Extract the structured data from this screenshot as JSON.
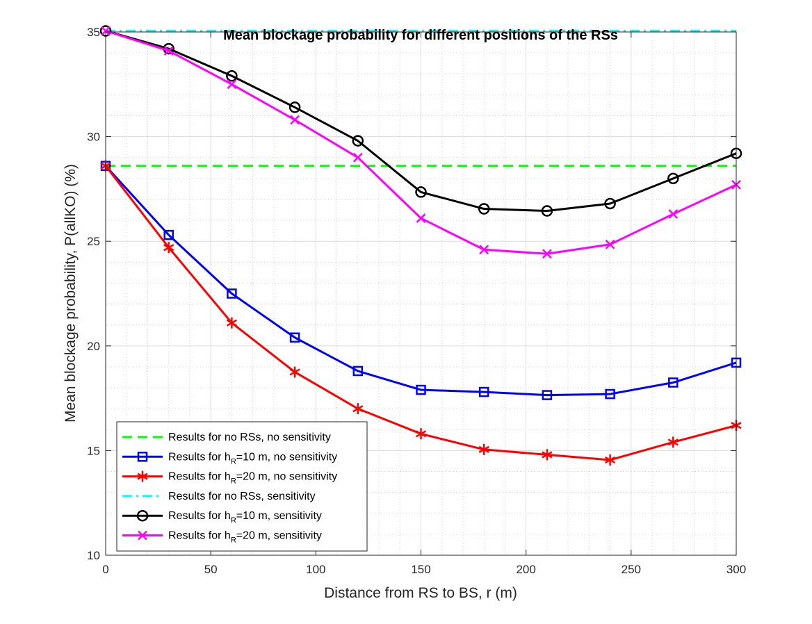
{
  "chart_data": {
    "type": "line",
    "title": "Mean blockage probability for different positions of the RSs",
    "xlabel": "Distance from RS to BS, r (m)",
    "ylabel": "Mean blockage probability, P(allKO) (%)",
    "xlim": [
      0,
      300
    ],
    "ylim": [
      10,
      35
    ],
    "xticks": [
      "0",
      "50",
      "100",
      "150",
      "200",
      "250",
      "300"
    ],
    "yticks": [
      "10",
      "15",
      "20",
      "25",
      "30",
      "35"
    ],
    "grid": true,
    "legend_position": "bottom-left",
    "x": [
      0,
      30,
      60,
      90,
      120,
      150,
      180,
      210,
      240,
      270,
      300
    ],
    "series": [
      {
        "legend_pre": "Results for no RSs, no sensitivity",
        "legend_sub": "",
        "legend_post": "",
        "color": "#00ff00",
        "style": "dashed",
        "marker": "none",
        "values": [
          28.6,
          28.6,
          28.6,
          28.6,
          28.6,
          28.6,
          28.6,
          28.6,
          28.6,
          28.6,
          28.6
        ]
      },
      {
        "legend_pre": "Results for h",
        "legend_sub": "R",
        "legend_post": "=10 m, no sensitivity",
        "color": "#0000ff",
        "style": "solid",
        "marker": "square",
        "values": [
          28.6,
          25.3,
          22.5,
          20.4,
          18.8,
          17.9,
          17.8,
          17.65,
          17.7,
          18.25,
          19.2
        ]
      },
      {
        "legend_pre": "Results for h",
        "legend_sub": "R",
        "legend_post": "=20 m, no sensitivity",
        "color": "#ff0000",
        "style": "solid",
        "marker": "asterisk",
        "values": [
          28.6,
          24.7,
          21.1,
          18.75,
          17.0,
          15.8,
          15.05,
          14.8,
          14.55,
          15.4,
          16.2
        ]
      },
      {
        "legend_pre": "Results for no RSs, sensitivity",
        "legend_sub": "",
        "legend_post": "",
        "color": "#00ffff",
        "style": "dashdot",
        "marker": "none",
        "values": [
          35.05,
          35.05,
          35.05,
          35.05,
          35.05,
          35.05,
          35.05,
          35.05,
          35.05,
          35.05,
          35.05
        ]
      },
      {
        "legend_pre": "Results for h",
        "legend_sub": "R",
        "legend_post": "=10 m, sensitivity",
        "color": "#000000",
        "style": "solid",
        "marker": "circle",
        "values": [
          35.05,
          34.2,
          32.9,
          31.4,
          29.8,
          27.35,
          26.55,
          26.45,
          26.8,
          28.0,
          29.2
        ]
      },
      {
        "legend_pre": "Results for h",
        "legend_sub": "R",
        "legend_post": "=20 m, sensitivity",
        "color": "#ff00ff",
        "style": "solid",
        "marker": "x",
        "values": [
          35.05,
          34.1,
          32.5,
          30.8,
          29.0,
          26.1,
          24.6,
          24.4,
          24.85,
          26.3,
          27.7
        ]
      }
    ]
  }
}
